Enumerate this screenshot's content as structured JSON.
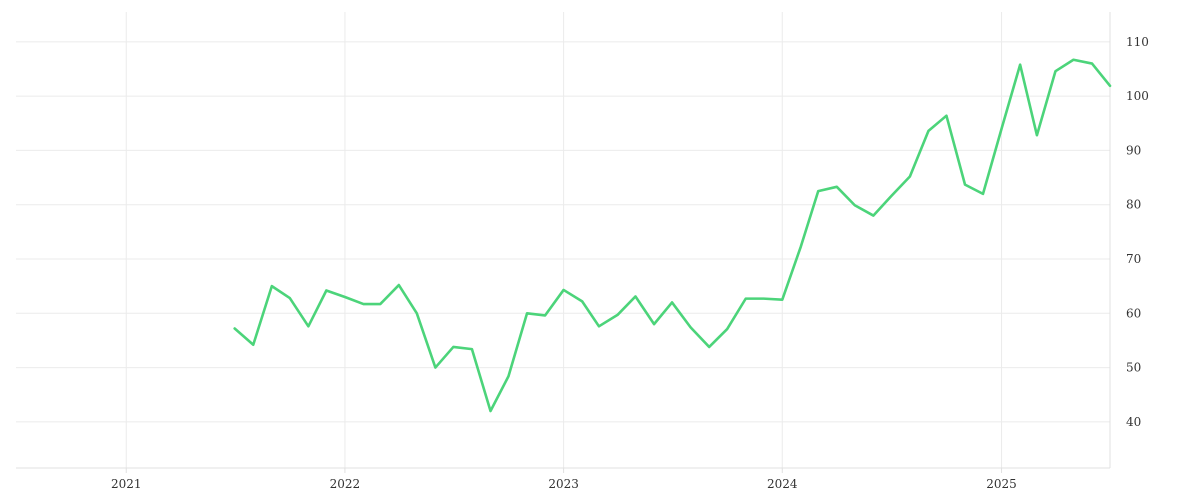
{
  "chart_data": {
    "type": "line",
    "title": "",
    "xlabel": "",
    "ylabel": "",
    "x_ticks": [
      "2021",
      "2022",
      "2023",
      "2024",
      "2025"
    ],
    "y_ticks": [
      40,
      50,
      60,
      70,
      80,
      90,
      100,
      110
    ],
    "xlim": [
      "2020-07-01",
      "2025-07-01"
    ],
    "ylim": [
      31.5,
      115.5
    ],
    "grid": true,
    "legend": "none",
    "y_axis_side": "right",
    "series": [
      {
        "color": "#4cd47a",
        "x": [
          "2021-07-01",
          "2021-08-01",
          "2021-09-01",
          "2021-10-01",
          "2021-11-01",
          "2021-12-01",
          "2022-01-01",
          "2022-02-01",
          "2022-03-01",
          "2022-04-01",
          "2022-05-01",
          "2022-06-01",
          "2022-07-01",
          "2022-08-01",
          "2022-09-01",
          "2022-10-01",
          "2022-11-01",
          "2022-12-01",
          "2023-01-01",
          "2023-02-01",
          "2023-03-01",
          "2023-04-01",
          "2023-05-01",
          "2023-06-01",
          "2023-07-01",
          "2023-08-01",
          "2023-09-01",
          "2023-10-01",
          "2023-11-01",
          "2023-12-01",
          "2024-01-01",
          "2024-02-01",
          "2024-03-01",
          "2024-04-01",
          "2024-05-01",
          "2024-06-01",
          "2024-07-01",
          "2024-08-01",
          "2024-09-01",
          "2024-10-01",
          "2024-11-01",
          "2024-12-01",
          "2025-01-01",
          "2025-02-01",
          "2025-03-01",
          "2025-04-01",
          "2025-05-01",
          "2025-06-01",
          "2025-07-01"
        ],
        "y": [
          57.2,
          54.2,
          65.0,
          62.8,
          57.6,
          64.2,
          63.0,
          61.7,
          61.7,
          65.2,
          60.0,
          50.0,
          53.8,
          53.4,
          42.0,
          48.4,
          60.0,
          59.6,
          64.3,
          62.2,
          57.6,
          59.7,
          63.1,
          58.0,
          62.0,
          57.4,
          53.8,
          57.1,
          62.7,
          62.7,
          62.5,
          72.3,
          82.5,
          83.3,
          79.9,
          78.0,
          81.6,
          85.2,
          93.6,
          96.4,
          83.7,
          82.0,
          94.0,
          105.8,
          92.8,
          104.6,
          106.7,
          106.0,
          101.9
        ]
      }
    ]
  }
}
